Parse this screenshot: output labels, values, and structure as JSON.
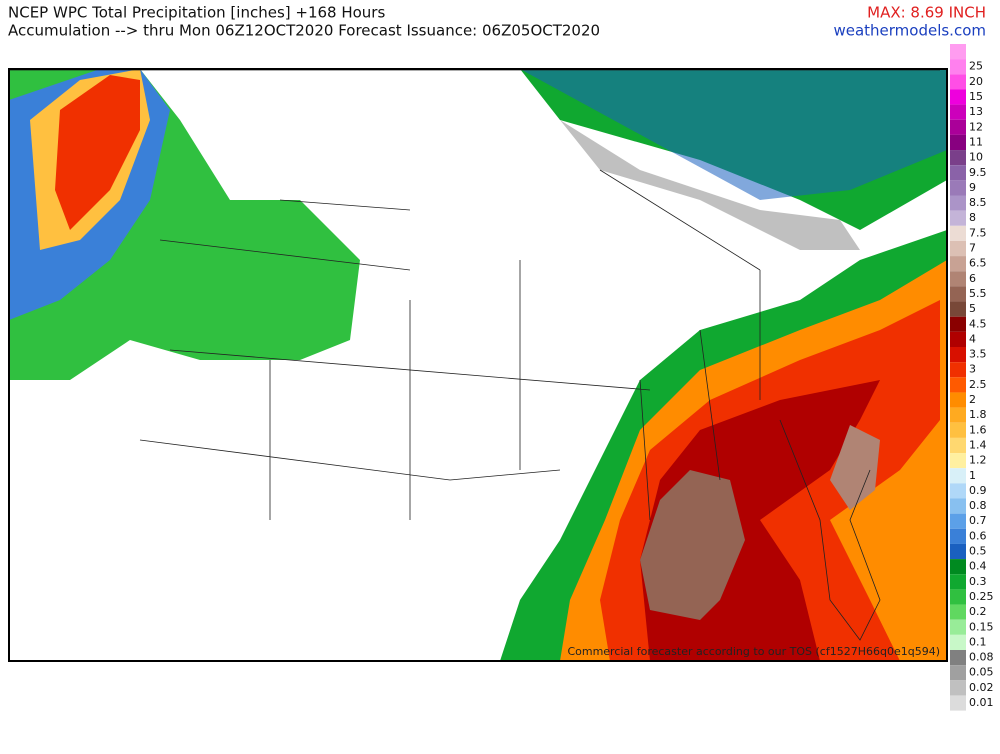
{
  "header": {
    "title": "NCEP WPC Total Precipitation [inches] +168 Hours",
    "subtitle": "Accumulation --> thru Mon 06Z12OCT2020   Forecast Issuance: 06Z05OCT2020",
    "max": "MAX: 8.69 INCH",
    "site": "weathermodels.com"
  },
  "watermark": "Commercial forecaster according to our TOS (cf1527H66q0e1q594)",
  "legend": [
    {
      "label": null,
      "color": "#ff9cf0"
    },
    {
      "label": "25",
      "color": "#ff80ee"
    },
    {
      "label": "20",
      "color": "#ff4ee6"
    },
    {
      "label": "15",
      "color": "#ee00dd"
    },
    {
      "label": "13",
      "color": "#cc00bb"
    },
    {
      "label": "12",
      "color": "#aa0099"
    },
    {
      "label": "11",
      "color": "#880080"
    },
    {
      "label": "10",
      "color": "#7a3f8a"
    },
    {
      "label": "9.5",
      "color": "#8a62a8"
    },
    {
      "label": "9",
      "color": "#9a7ab8"
    },
    {
      "label": "8.5",
      "color": "#ab94c8"
    },
    {
      "label": "8",
      "color": "#c4b4d8"
    },
    {
      "label": "7.5",
      "color": "#ecdcd4"
    },
    {
      "label": "7",
      "color": "#dcc0b4"
    },
    {
      "label": "6.5",
      "color": "#c8a294"
    },
    {
      "label": "6",
      "color": "#b08474"
    },
    {
      "label": "5.5",
      "color": "#946454"
    },
    {
      "label": "5",
      "color": "#784838"
    },
    {
      "label": "4.5",
      "color": "#8a0000"
    },
    {
      "label": "4",
      "color": "#b00000"
    },
    {
      "label": "3.5",
      "color": "#d81000"
    },
    {
      "label": "3",
      "color": "#f03000"
    },
    {
      "label": "2.5",
      "color": "#ff5a00"
    },
    {
      "label": "2",
      "color": "#ff8c00"
    },
    {
      "label": "1.8",
      "color": "#ffaa20"
    },
    {
      "label": "1.6",
      "color": "#ffc040"
    },
    {
      "label": "1.4",
      "color": "#ffd870"
    },
    {
      "label": "1.2",
      "color": "#fff0a0"
    },
    {
      "label": "1",
      "color": "#d8f0f8"
    },
    {
      "label": "0.9",
      "color": "#b0d8f8"
    },
    {
      "label": "0.8",
      "color": "#88c0f0"
    },
    {
      "label": "0.7",
      "color": "#5ca0e8"
    },
    {
      "label": "0.6",
      "color": "#3a80d8"
    },
    {
      "label": "0.5",
      "color": "#1a60c0"
    },
    {
      "label": "0.4",
      "color": "#008a20"
    },
    {
      "label": "0.3",
      "color": "#10a830"
    },
    {
      "label": "0.25",
      "color": "#30c040"
    },
    {
      "label": "0.2",
      "color": "#60d860"
    },
    {
      "label": "0.15",
      "color": "#98ec98"
    },
    {
      "label": "0.1",
      "color": "#c8f8c8"
    },
    {
      "label": "0.08",
      "color": "#808080"
    },
    {
      "label": "0.05",
      "color": "#a0a0a0"
    },
    {
      "label": "0.02",
      "color": "#c0c0c0"
    },
    {
      "label": "0.01",
      "color": "#dcdcdc"
    }
  ]
}
